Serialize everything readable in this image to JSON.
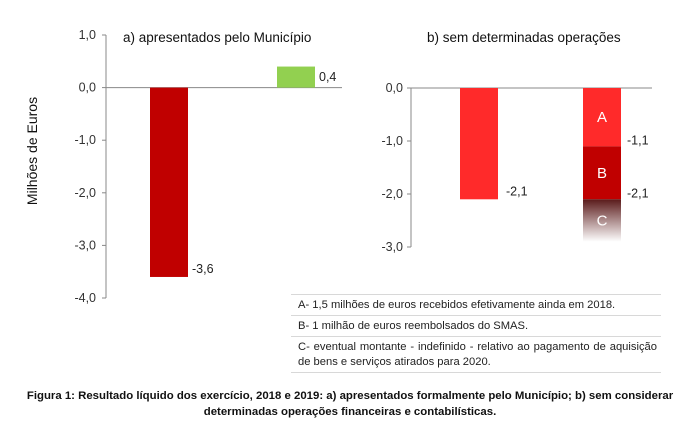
{
  "chart_data": [
    {
      "type": "bar",
      "title": "a)  apresentados pelo Município",
      "ylabel": "Milhões de Euros",
      "ylim": [
        -4.0,
        1.0
      ],
      "yticks": [
        "1,0",
        "0,0",
        "-1,0",
        "-2,0",
        "-3,0",
        "-4,0"
      ],
      "bars": [
        {
          "value": -3.6,
          "label": "-3,6",
          "color": "#c00000"
        },
        {
          "value": 0.4,
          "label": "0,4",
          "color": "#92d050"
        }
      ]
    },
    {
      "type": "bar",
      "stacked": true,
      "title": "b) sem determinadas operações",
      "ylim": [
        -3.0,
        0.0
      ],
      "yticks": [
        "0,0",
        "-1,0",
        "-2,0",
        "-3,0"
      ],
      "bars": [
        {
          "value": -2.1,
          "label": "-2,1",
          "color": "#ff2a2a"
        },
        {
          "stack": [
            {
              "key": "A",
              "from": 0.0,
              "to": -1.1,
              "label": "-1,1",
              "color": "#ff2a2a"
            },
            {
              "key": "B",
              "from": -1.1,
              "to": -2.1,
              "label": "-2,1",
              "color": "#c00000"
            },
            {
              "key": "C",
              "from": -2.1,
              "to": -2.9,
              "label": "",
              "color": "#5a1a1a",
              "fade": true
            }
          ]
        }
      ]
    }
  ],
  "legend": [
    {
      "key": "A-",
      "text": " 1,5 milhões de euros recebidos efetivamente ainda em 2018."
    },
    {
      "key": "B-",
      "text": " 1 milhão de euros reembolsados do SMAS."
    },
    {
      "key": "C-",
      "text": " eventual montante - indefinido - relativo ao pagamento de aquisição de bens e serviços atirados para 2020."
    }
  ],
  "caption": {
    "line1": "Figura 1: Resultado líquido dos exercício, 2018 e 2019: a) apresentados formalmente pelo Município; b) sem considerar",
    "line2": "determinadas operações financeiras e contabilísticas."
  }
}
